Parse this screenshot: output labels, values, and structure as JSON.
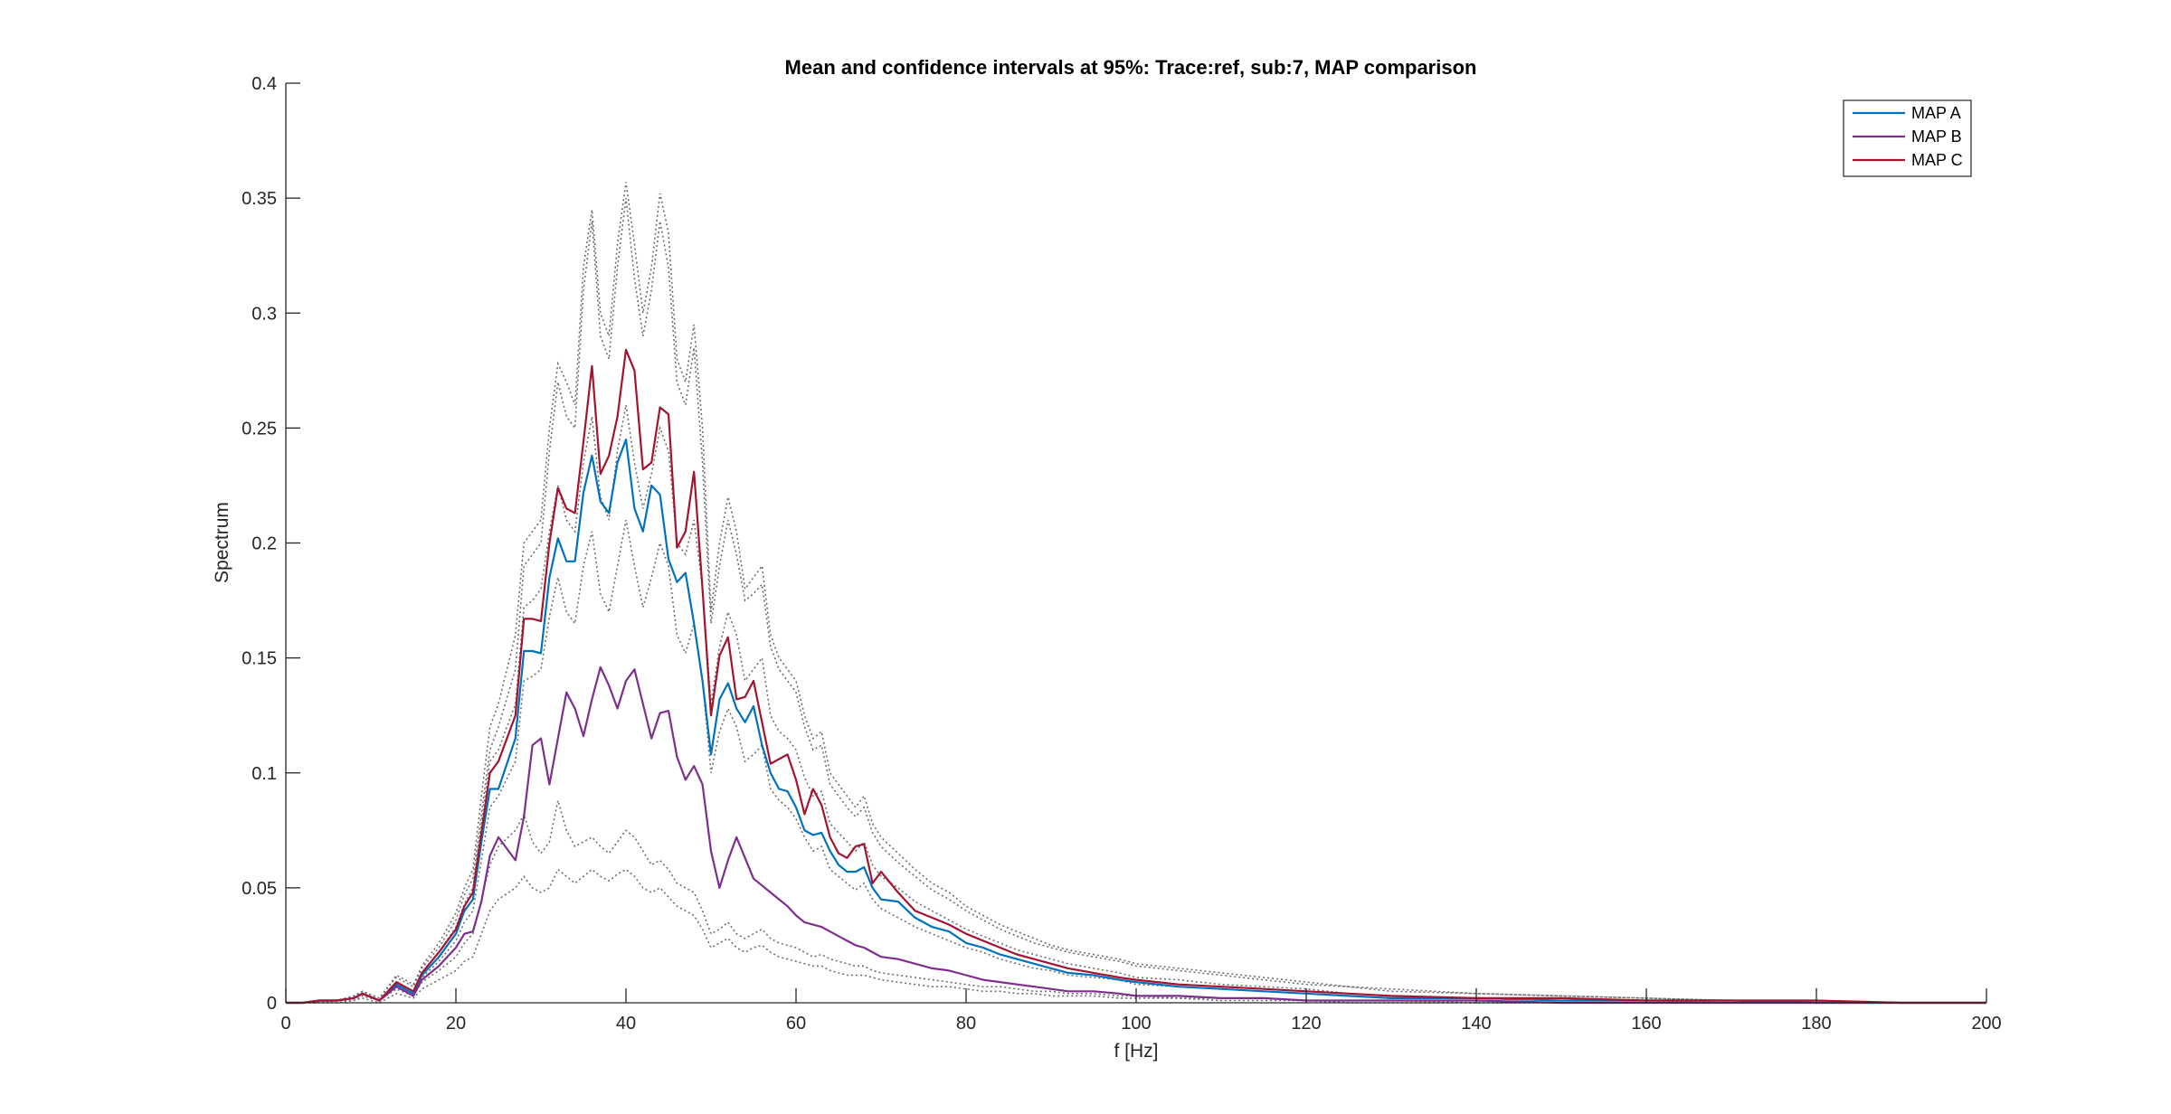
{
  "chart_data": {
    "type": "line",
    "title": "Mean and confidence intervals at 95%: Trace:ref, sub:7, MAP comparison",
    "xlabel": "f [Hz]",
    "ylabel": "Spectrum",
    "xlim": [
      0,
      200
    ],
    "ylim": [
      0,
      0.4
    ],
    "x_ticks": [
      0,
      20,
      40,
      60,
      80,
      100,
      120,
      140,
      160,
      180,
      200
    ],
    "y_ticks": [
      0,
      0.05,
      0.1,
      0.15,
      0.2,
      0.25,
      0.3,
      0.35,
      0.4
    ],
    "x_tick_labels": [
      "0",
      "20",
      "40",
      "60",
      "80",
      "100",
      "120",
      "140",
      "160",
      "180",
      "200"
    ],
    "y_tick_labels": [
      "0",
      "0.05",
      "0.1",
      "0.15",
      "0.2",
      "0.25",
      "0.3",
      "0.35",
      "0.4"
    ],
    "grid": false,
    "legend_position": "top-right",
    "x": [
      0,
      2,
      4,
      6,
      8,
      9,
      11,
      13,
      15,
      16,
      18,
      20,
      21,
      22,
      23,
      24,
      25,
      27,
      28,
      29,
      30,
      31,
      32,
      33,
      34,
      35,
      36,
      37,
      38,
      39,
      40,
      41,
      42,
      43,
      44,
      45,
      46,
      47,
      48,
      49,
      50,
      51,
      52,
      53,
      54,
      55,
      56,
      57,
      58,
      59,
      60,
      61,
      62,
      63,
      64,
      65,
      66,
      67,
      68,
      69,
      70,
      72,
      74,
      76,
      78,
      80,
      82,
      84,
      86,
      88,
      90,
      92,
      95,
      98,
      100,
      105,
      110,
      115,
      120,
      125,
      130,
      140,
      150,
      160,
      170,
      180,
      190,
      200
    ],
    "series": [
      {
        "name": "MAP A",
        "color": "#0072BD",
        "values": [
          0,
          0,
          0.001,
          0.001,
          0.002,
          0.004,
          0.001,
          0.008,
          0.004,
          0.012,
          0.02,
          0.03,
          0.04,
          0.045,
          0.07,
          0.093,
          0.093,
          0.115,
          0.153,
          0.153,
          0.152,
          0.185,
          0.202,
          0.192,
          0.192,
          0.222,
          0.238,
          0.218,
          0.213,
          0.235,
          0.245,
          0.215,
          0.205,
          0.225,
          0.221,
          0.193,
          0.183,
          0.187,
          0.165,
          0.14,
          0.108,
          0.132,
          0.139,
          0.128,
          0.122,
          0.129,
          0.112,
          0.1,
          0.093,
          0.092,
          0.085,
          0.075,
          0.073,
          0.074,
          0.066,
          0.06,
          0.057,
          0.057,
          0.059,
          0.05,
          0.045,
          0.044,
          0.037,
          0.033,
          0.031,
          0.026,
          0.024,
          0.021,
          0.019,
          0.017,
          0.015,
          0.013,
          0.012,
          0.01,
          0.009,
          0.007,
          0.006,
          0.005,
          0.004,
          0.003,
          0.002,
          0.002,
          0.001,
          0.001,
          0.001,
          0,
          0,
          0
        ]
      },
      {
        "name": "MAP B",
        "color": "#7E2F8E",
        "values": [
          0,
          0,
          0.001,
          0.001,
          0.002,
          0.004,
          0.001,
          0.007,
          0.003,
          0.01,
          0.016,
          0.024,
          0.03,
          0.031,
          0.044,
          0.064,
          0.072,
          0.062,
          0.081,
          0.112,
          0.115,
          0.095,
          0.115,
          0.135,
          0.128,
          0.116,
          0.132,
          0.146,
          0.138,
          0.128,
          0.14,
          0.145,
          0.13,
          0.115,
          0.126,
          0.127,
          0.107,
          0.097,
          0.103,
          0.095,
          0.066,
          0.05,
          0.062,
          0.072,
          0.063,
          0.054,
          0.051,
          0.048,
          0.045,
          0.042,
          0.038,
          0.035,
          0.034,
          0.033,
          0.031,
          0.029,
          0.027,
          0.025,
          0.024,
          0.022,
          0.02,
          0.019,
          0.017,
          0.015,
          0.014,
          0.012,
          0.01,
          0.009,
          0.008,
          0.007,
          0.006,
          0.005,
          0.005,
          0.004,
          0.003,
          0.003,
          0.002,
          0.002,
          0.001,
          0.001,
          0.001,
          0.001,
          0,
          0,
          0,
          0,
          0,
          0
        ]
      },
      {
        "name": "MAP C",
        "color": "#A2142F",
        "values": [
          0,
          0,
          0.001,
          0.001,
          0.002,
          0.004,
          0.001,
          0.009,
          0.005,
          0.013,
          0.022,
          0.032,
          0.042,
          0.048,
          0.074,
          0.1,
          0.105,
          0.125,
          0.167,
          0.167,
          0.166,
          0.2,
          0.224,
          0.215,
          0.213,
          0.244,
          0.277,
          0.23,
          0.238,
          0.255,
          0.284,
          0.275,
          0.232,
          0.235,
          0.259,
          0.256,
          0.198,
          0.205,
          0.231,
          0.18,
          0.125,
          0.151,
          0.159,
          0.132,
          0.133,
          0.14,
          0.122,
          0.104,
          0.106,
          0.108,
          0.097,
          0.082,
          0.093,
          0.086,
          0.072,
          0.065,
          0.063,
          0.068,
          0.069,
          0.052,
          0.057,
          0.048,
          0.04,
          0.037,
          0.034,
          0.03,
          0.027,
          0.024,
          0.021,
          0.019,
          0.017,
          0.015,
          0.013,
          0.011,
          0.01,
          0.008,
          0.007,
          0.006,
          0.005,
          0.004,
          0.003,
          0.002,
          0.002,
          0.001,
          0.001,
          0.001,
          0,
          0
        ]
      }
    ],
    "confidence_bounds": {
      "color": "#6e6e6e",
      "style": "dotted",
      "lines": [
        [
          0,
          0,
          0.001,
          0.001,
          0.003,
          0.005,
          0.002,
          0.012,
          0.008,
          0.016,
          0.026,
          0.039,
          0.05,
          0.058,
          0.09,
          0.12,
          0.13,
          0.16,
          0.2,
          0.205,
          0.21,
          0.25,
          0.278,
          0.27,
          0.26,
          0.32,
          0.345,
          0.3,
          0.29,
          0.33,
          0.357,
          0.33,
          0.3,
          0.32,
          0.352,
          0.335,
          0.28,
          0.27,
          0.295,
          0.25,
          0.17,
          0.2,
          0.22,
          0.205,
          0.18,
          0.185,
          0.19,
          0.16,
          0.15,
          0.145,
          0.14,
          0.125,
          0.115,
          0.118,
          0.1,
          0.095,
          0.09,
          0.085,
          0.09,
          0.078,
          0.072,
          0.065,
          0.058,
          0.052,
          0.048,
          0.042,
          0.038,
          0.034,
          0.031,
          0.028,
          0.025,
          0.023,
          0.021,
          0.019,
          0.017,
          0.015,
          0.013,
          0.011,
          0.009,
          0.007,
          0.006,
          0.004,
          0.003,
          0.002,
          0.001,
          0.001,
          0,
          0
        ],
        [
          0,
          0,
          0.001,
          0.001,
          0.003,
          0.005,
          0.002,
          0.011,
          0.007,
          0.015,
          0.024,
          0.036,
          0.047,
          0.054,
          0.082,
          0.11,
          0.12,
          0.145,
          0.19,
          0.195,
          0.2,
          0.24,
          0.27,
          0.255,
          0.25,
          0.31,
          0.34,
          0.29,
          0.28,
          0.32,
          0.35,
          0.315,
          0.29,
          0.31,
          0.34,
          0.32,
          0.27,
          0.26,
          0.285,
          0.235,
          0.165,
          0.19,
          0.21,
          0.195,
          0.175,
          0.178,
          0.182,
          0.155,
          0.145,
          0.14,
          0.135,
          0.12,
          0.11,
          0.112,
          0.095,
          0.09,
          0.085,
          0.081,
          0.085,
          0.074,
          0.068,
          0.061,
          0.055,
          0.049,
          0.045,
          0.04,
          0.036,
          0.032,
          0.029,
          0.026,
          0.024,
          0.022,
          0.02,
          0.018,
          0.016,
          0.014,
          0.012,
          0.01,
          0.008,
          0.007,
          0.005,
          0.004,
          0.003,
          0.002,
          0.001,
          0.001,
          0,
          0
        ],
        [
          0,
          0,
          0.001,
          0.001,
          0.002,
          0.004,
          0.001,
          0.009,
          0.005,
          0.013,
          0.022,
          0.033,
          0.043,
          0.05,
          0.078,
          0.105,
          0.11,
          0.13,
          0.172,
          0.175,
          0.18,
          0.205,
          0.225,
          0.21,
          0.205,
          0.235,
          0.255,
          0.22,
          0.21,
          0.24,
          0.26,
          0.235,
          0.215,
          0.23,
          0.25,
          0.24,
          0.2,
          0.195,
          0.21,
          0.18,
          0.13,
          0.155,
          0.17,
          0.16,
          0.14,
          0.145,
          0.15,
          0.125,
          0.118,
          0.115,
          0.11,
          0.098,
          0.09,
          0.092,
          0.078,
          0.074,
          0.07,
          0.066,
          0.07,
          0.06,
          0.055,
          0.05,
          0.044,
          0.04,
          0.036,
          0.032,
          0.029,
          0.026,
          0.023,
          0.021,
          0.019,
          0.017,
          0.015,
          0.013,
          0.011,
          0.01,
          0.008,
          0.007,
          0.006,
          0.004,
          0.003,
          0.002,
          0.002,
          0.001,
          0.001,
          0,
          0,
          0
        ],
        [
          0,
          0,
          0.001,
          0.001,
          0.002,
          0.004,
          0.001,
          0.008,
          0.004,
          0.011,
          0.018,
          0.027,
          0.035,
          0.04,
          0.062,
          0.085,
          0.09,
          0.105,
          0.14,
          0.142,
          0.145,
          0.168,
          0.185,
          0.17,
          0.165,
          0.19,
          0.205,
          0.178,
          0.17,
          0.19,
          0.21,
          0.19,
          0.172,
          0.185,
          0.2,
          0.19,
          0.16,
          0.152,
          0.165,
          0.14,
          0.1,
          0.118,
          0.128,
          0.12,
          0.105,
          0.108,
          0.112,
          0.093,
          0.088,
          0.085,
          0.08,
          0.072,
          0.066,
          0.068,
          0.058,
          0.055,
          0.052,
          0.049,
          0.052,
          0.045,
          0.041,
          0.037,
          0.033,
          0.03,
          0.027,
          0.024,
          0.022,
          0.019,
          0.017,
          0.015,
          0.014,
          0.012,
          0.011,
          0.01,
          0.008,
          0.007,
          0.006,
          0.005,
          0.004,
          0.003,
          0.002,
          0.002,
          0.001,
          0.001,
          0,
          0,
          0,
          0
        ],
        [
          0,
          0,
          0,
          0.001,
          0.001,
          0.003,
          0.001,
          0.006,
          0.003,
          0.009,
          0.014,
          0.02,
          0.026,
          0.03,
          0.045,
          0.06,
          0.068,
          0.075,
          0.082,
          0.07,
          0.065,
          0.07,
          0.088,
          0.075,
          0.068,
          0.07,
          0.072,
          0.068,
          0.065,
          0.07,
          0.075,
          0.072,
          0.066,
          0.06,
          0.062,
          0.058,
          0.052,
          0.05,
          0.048,
          0.04,
          0.03,
          0.032,
          0.035,
          0.03,
          0.028,
          0.03,
          0.032,
          0.028,
          0.026,
          0.025,
          0.024,
          0.022,
          0.02,
          0.021,
          0.019,
          0.018,
          0.017,
          0.016,
          0.016,
          0.014,
          0.013,
          0.012,
          0.011,
          0.01,
          0.009,
          0.008,
          0.007,
          0.007,
          0.006,
          0.005,
          0.005,
          0.004,
          0.004,
          0.003,
          0.003,
          0.002,
          0.002,
          0.002,
          0.001,
          0.001,
          0.001,
          0,
          0,
          0,
          0,
          0,
          0,
          0
        ],
        [
          0,
          0,
          0,
          0,
          0.001,
          0.002,
          0,
          0.004,
          0.002,
          0.006,
          0.01,
          0.014,
          0.018,
          0.02,
          0.03,
          0.04,
          0.045,
          0.05,
          0.055,
          0.05,
          0.048,
          0.05,
          0.058,
          0.055,
          0.052,
          0.055,
          0.058,
          0.055,
          0.053,
          0.056,
          0.058,
          0.055,
          0.05,
          0.048,
          0.05,
          0.046,
          0.042,
          0.04,
          0.038,
          0.032,
          0.024,
          0.026,
          0.028,
          0.024,
          0.022,
          0.024,
          0.025,
          0.022,
          0.02,
          0.019,
          0.018,
          0.017,
          0.016,
          0.016,
          0.014,
          0.013,
          0.012,
          0.012,
          0.012,
          0.011,
          0.01,
          0.009,
          0.008,
          0.007,
          0.007,
          0.006,
          0.005,
          0.005,
          0.004,
          0.004,
          0.003,
          0.003,
          0.003,
          0.002,
          0.002,
          0.002,
          0.001,
          0.001,
          0.001,
          0,
          0,
          0,
          0,
          0,
          0,
          0,
          0,
          0
        ]
      ]
    }
  }
}
